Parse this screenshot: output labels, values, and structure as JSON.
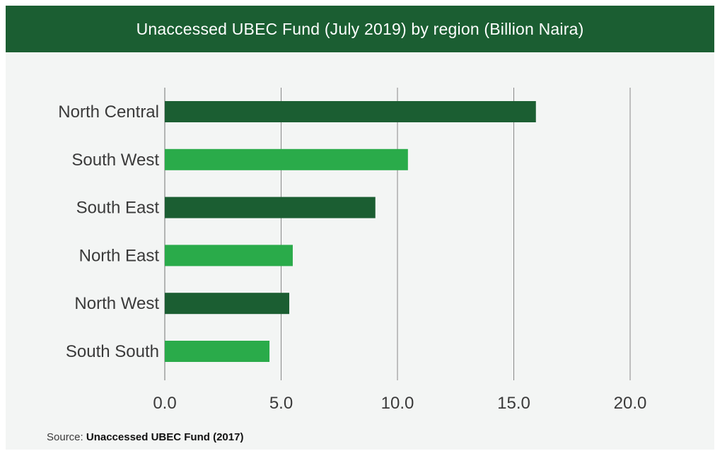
{
  "header": {
    "title": "Unaccessed UBEC Fund (July 2019) by region (Billion Naira)"
  },
  "source": {
    "prefix": "Source: ",
    "name": "Unaccessed UBEC Fund (2017)"
  },
  "colors": {
    "header_bg": "#1b5e32",
    "bar_dark": "#1b5e32",
    "bar_light": "#2aab4a",
    "grid": "#888888",
    "background": "#f3f5f4"
  },
  "chart_data": {
    "type": "bar",
    "orientation": "horizontal",
    "title": "Unaccessed UBEC Fund (July 2019) by region (Billion Naira)",
    "categories": [
      "North Central",
      "South West",
      "South East",
      "North East",
      "North West",
      "South South"
    ],
    "values": [
      15.95,
      10.45,
      9.05,
      5.5,
      5.35,
      4.5
    ],
    "bar_colors": [
      "#1b5e32",
      "#2aab4a",
      "#1b5e32",
      "#2aab4a",
      "#1b5e32",
      "#2aab4a"
    ],
    "xlim": [
      0,
      20
    ],
    "xticks": [
      "0.0",
      "5.0",
      "10.0",
      "15.0",
      "20.0"
    ],
    "grid": true,
    "legend": "none"
  }
}
